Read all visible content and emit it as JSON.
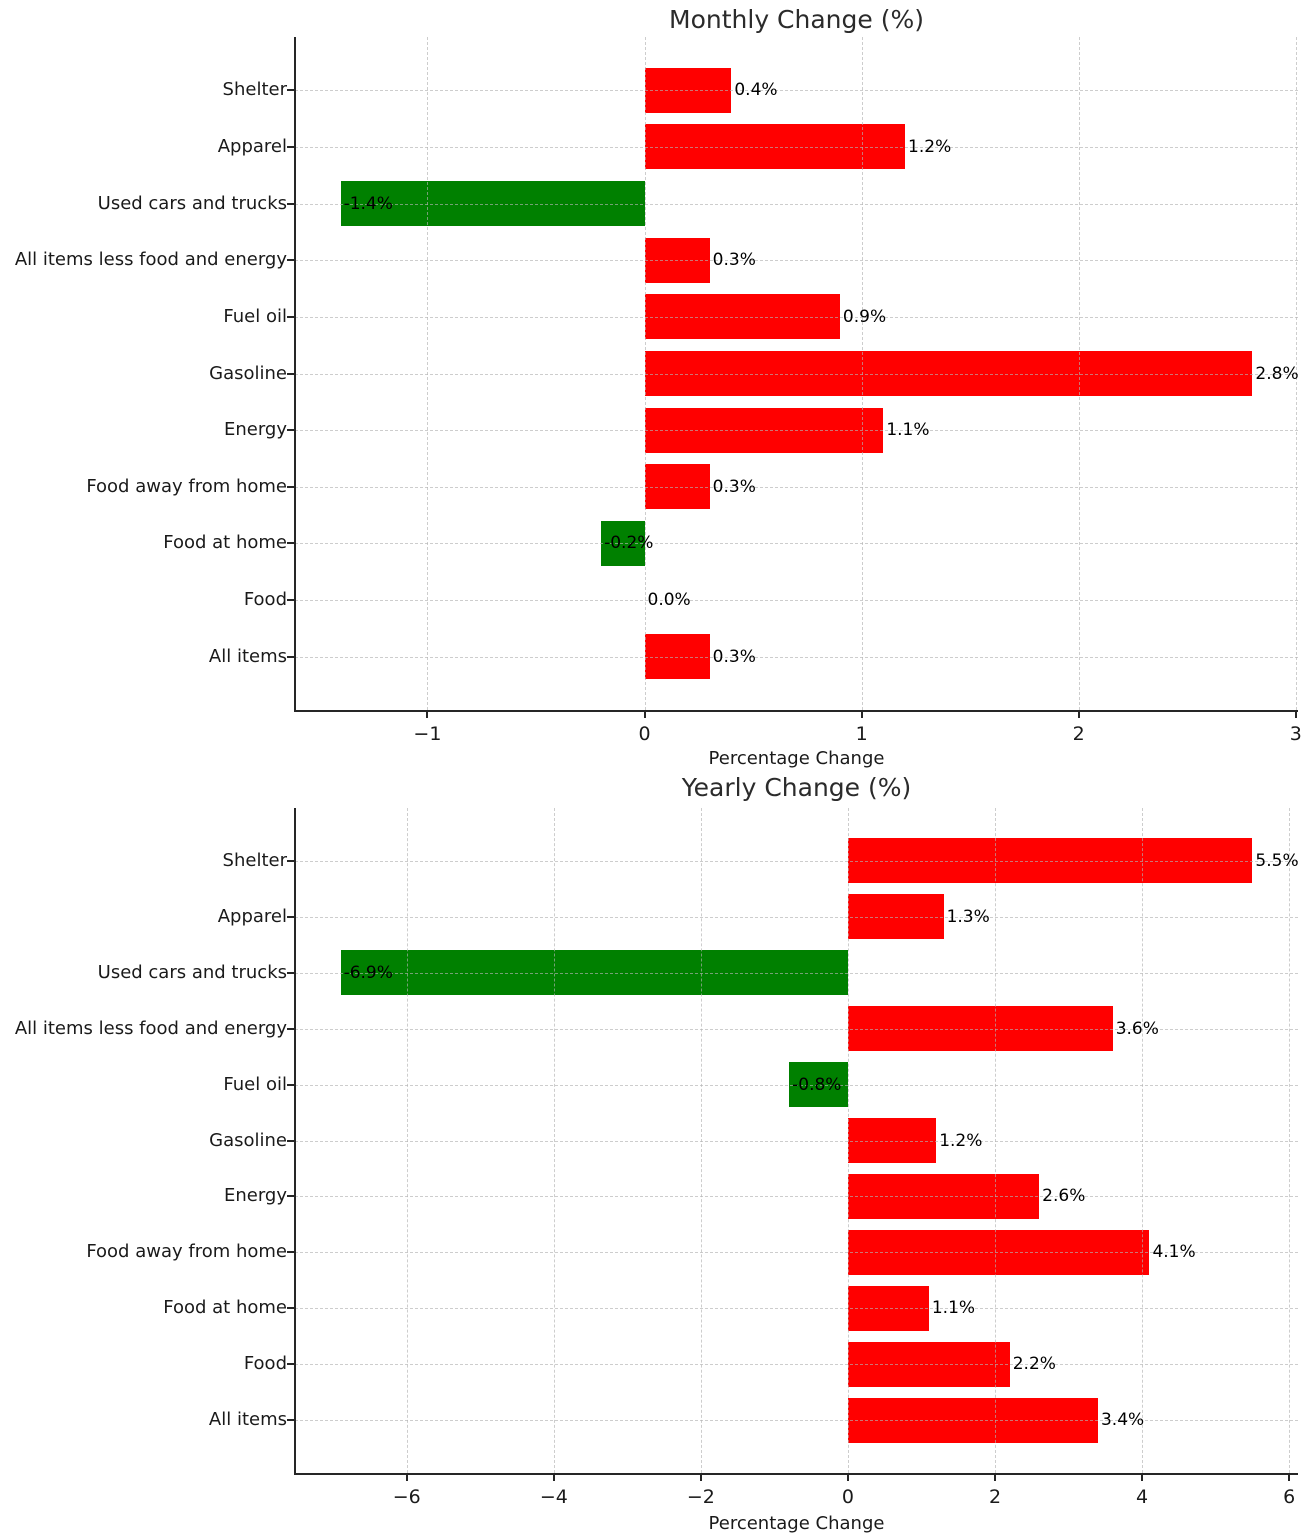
{
  "figure": {
    "background": "#ffffff"
  },
  "colors": {
    "positive_bar": "#ff0000",
    "negative_bar": "#008000",
    "grid": "#b2b2b2",
    "axis": "#262626",
    "text": "#1a1a1a",
    "value_label_text": "#000000"
  },
  "chart_data": [
    {
      "type": "bar",
      "orientation": "horizontal",
      "title": "Monthly Change (%)",
      "xlabel": "Percentage Change",
      "category_order": "top-to-bottom",
      "categories": [
        "Shelter",
        "Apparel",
        "Used cars and trucks",
        "All items less food and energy",
        "Fuel oil",
        "Gasoline",
        "Energy",
        "Food away from home",
        "Food at home",
        "Food",
        "All items"
      ],
      "values": [
        0.4,
        1.2,
        -1.4,
        0.3,
        0.9,
        2.8,
        1.1,
        0.3,
        -0.2,
        0.0,
        0.3
      ],
      "value_labels": [
        "0.4%",
        "1.2%",
        "-1.4%",
        "0.3%",
        "0.9%",
        "2.8%",
        "1.1%",
        "0.3%",
        "-0.2%",
        "0.0%",
        "0.3%"
      ],
      "xticks": [
        -1,
        0,
        1,
        2,
        3
      ],
      "xtick_labels": [
        "−1",
        "0",
        "1",
        "2",
        "3"
      ],
      "xlim": [
        -1.61,
        3.01
      ],
      "grid": "dashed, drawn above bars",
      "legend": "none",
      "color_rule": "red if value >= 0, green if value < 0"
    },
    {
      "type": "bar",
      "orientation": "horizontal",
      "title": "Yearly Change (%)",
      "xlabel": "Percentage Change",
      "category_order": "top-to-bottom",
      "categories": [
        "Shelter",
        "Apparel",
        "Used cars and trucks",
        "All items less food and energy",
        "Fuel oil",
        "Gasoline",
        "Energy",
        "Food away from home",
        "Food at home",
        "Food",
        "All items"
      ],
      "values": [
        5.5,
        1.3,
        -6.9,
        3.6,
        -0.8,
        1.2,
        2.6,
        4.1,
        1.1,
        2.2,
        3.4
      ],
      "value_labels": [
        "5.5%",
        "1.3%",
        "-6.9%",
        "3.6%",
        "-0.8%",
        "1.2%",
        "2.6%",
        "4.1%",
        "1.1%",
        "2.2%",
        "3.4%"
      ],
      "xticks": [
        -6,
        -4,
        -2,
        0,
        2,
        4,
        6
      ],
      "xtick_labels": [
        "−6",
        "−4",
        "−2",
        "0",
        "2",
        "4",
        "6"
      ],
      "xlim": [
        -7.52,
        6.12
      ],
      "grid": "dashed, drawn above bars",
      "legend": "none",
      "color_rule": "red if value >= 0, green if value < 0"
    }
  ]
}
